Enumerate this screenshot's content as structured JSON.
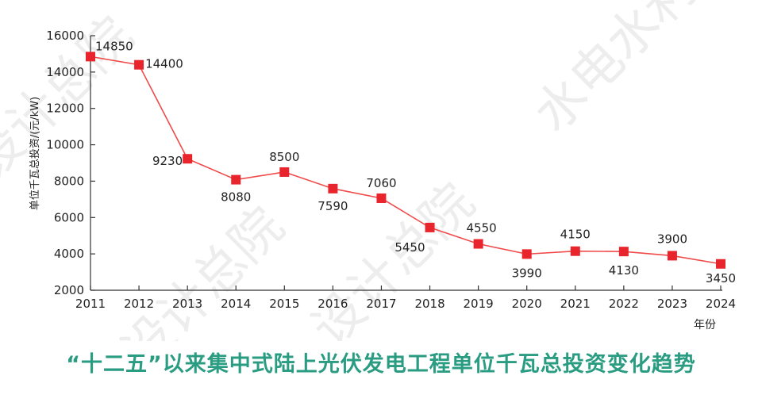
{
  "watermarks": [
    "设计总院",
    "水电水利",
    "设计总院",
    "设计总院"
  ],
  "chart_data": {
    "type": "line",
    "title": "“十二五”以来集中式陆上光伏发电工程单位千瓦总投资变化趋势",
    "xlabel": "年份",
    "ylabel": "单位千瓦总投资/(元/kW)",
    "x": [
      "2011",
      "2012",
      "2013",
      "2014",
      "2015",
      "2016",
      "2017",
      "2018",
      "2019",
      "2020",
      "2021",
      "2022",
      "2023",
      "2024"
    ],
    "values": [
      14850,
      14400,
      9230,
      8080,
      8500,
      7590,
      7060,
      5450,
      4550,
      3990,
      4150,
      4130,
      3900,
      3450
    ],
    "data_labels": [
      "14850",
      "14400",
      "9230",
      "8080",
      "8500",
      "7590",
      "7060",
      "5450",
      "4550",
      "3990",
      "4150",
      "4130",
      "3900",
      "3450"
    ],
    "yticks": [
      "2000",
      "4000",
      "6000",
      "8000",
      "10000",
      "12000",
      "14000",
      "16000"
    ],
    "ylim": [
      2000,
      16000
    ],
    "grid": false,
    "line_color": "#f04a4a",
    "marker_color": "#e8242c",
    "title_color": "#2a9c82"
  }
}
